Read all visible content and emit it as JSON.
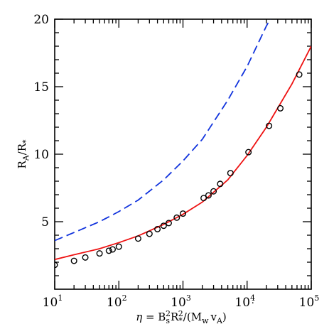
{
  "chart_data": {
    "type": "scatter",
    "x_scale": "log",
    "xlim": [
      10,
      100000
    ],
    "ylim": [
      0,
      20
    ],
    "grid": false,
    "legend": "none",
    "xlabel_parts": {
      "eta": "η",
      "eq": " = B",
      "sub_s": "s",
      "sup_2a": "2",
      "R": "R",
      "sub_star": "*",
      "sup_2b": "2",
      "div": "/(",
      "Mdot": "M",
      "dot": "˙",
      "sub_w": "w",
      "v": "v",
      "sub_A": "A",
      "close": ")"
    },
    "ylabel_parts": {
      "R1": "R",
      "sub_A": "A",
      "slash": "/R",
      "sub_star": "*"
    },
    "y_ticks": [
      "5",
      "10",
      "15",
      "20"
    ],
    "x_ticks": [
      {
        "base": "10",
        "exp": "1",
        "value": 10
      },
      {
        "base": "10",
        "exp": "2",
        "value": 100
      },
      {
        "base": "10",
        "exp": "3",
        "value": 1000
      },
      {
        "base": "10",
        "exp": "4",
        "value": 10000
      },
      {
        "base": "10",
        "exp": "5",
        "value": 100000
      }
    ],
    "series": [
      {
        "kind": "points",
        "marker": "open-circle",
        "color": "#000000",
        "x": [
          10,
          20,
          30,
          50,
          70,
          80,
          100,
          200,
          300,
          400,
          500,
          600,
          800,
          1000,
          2100,
          2500,
          3000,
          3800,
          5500,
          10500,
          22000,
          33000,
          65000
        ],
        "y": [
          1.8,
          2.1,
          2.35,
          2.65,
          2.85,
          2.95,
          3.15,
          3.75,
          4.1,
          4.45,
          4.7,
          4.9,
          5.3,
          5.6,
          6.75,
          6.95,
          7.25,
          7.8,
          8.6,
          10.15,
          12.1,
          13.4,
          15.9
        ]
      },
      {
        "kind": "line",
        "style": "solid",
        "color": "#ee1111",
        "x": [
          10,
          20,
          50,
          100,
          200,
          500,
          1000,
          2000,
          5000,
          10000,
          20000,
          50000,
          100000
        ],
        "y": [
          2.2,
          2.55,
          3.0,
          3.45,
          3.95,
          4.8,
          5.55,
          6.45,
          8.1,
          9.9,
          12.0,
          15.2,
          18.0
        ]
      },
      {
        "kind": "line",
        "style": "dashed",
        "color": "#1133dd",
        "x": [
          10,
          20,
          50,
          100,
          200,
          500,
          1000,
          2000,
          5000,
          10000,
          20000,
          30000
        ],
        "y": [
          3.6,
          4.2,
          5.0,
          5.75,
          6.6,
          8.1,
          9.5,
          11.1,
          14.0,
          16.5,
          19.5,
          21.0
        ]
      }
    ]
  }
}
